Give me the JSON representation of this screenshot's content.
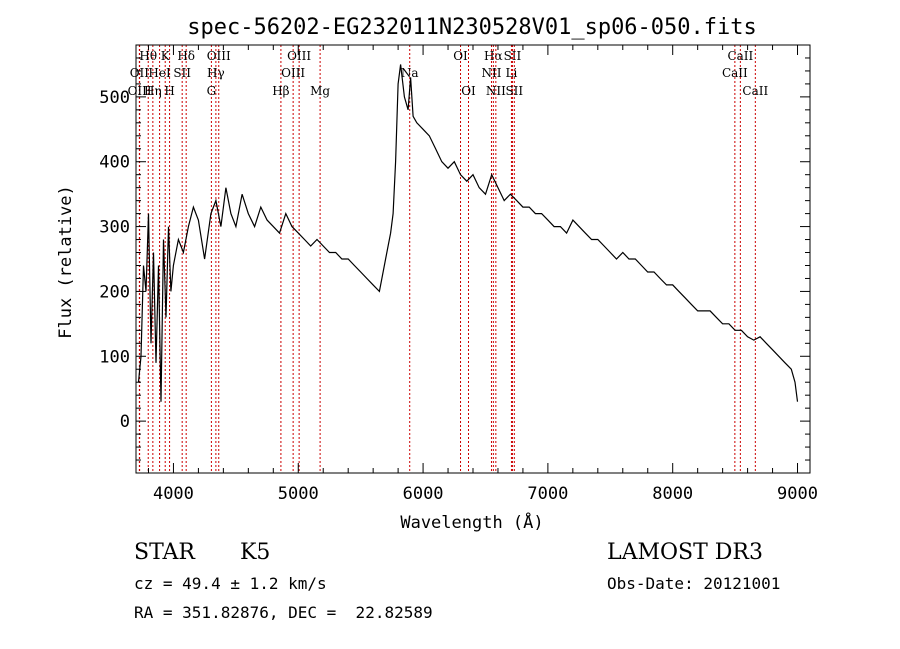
{
  "chart_data": {
    "type": "line",
    "title": "spec-56202-EG232011N230528V01_sp06-050.fits",
    "xlabel": "Wavelength (Å)",
    "ylabel": "Flux (relative)",
    "xlim": [
      3700,
      9100
    ],
    "ylim": [
      -80,
      580
    ],
    "x_ticks": [
      4000,
      5000,
      6000,
      7000,
      8000,
      9000
    ],
    "y_ticks": [
      0,
      100,
      200,
      300,
      400,
      500
    ],
    "grid": false,
    "line_color": "#000000",
    "marker_color": "#cc0000",
    "spectrum": {
      "x": [
        3720,
        3740,
        3760,
        3780,
        3800,
        3820,
        3840,
        3860,
        3880,
        3900,
        3920,
        3940,
        3960,
        3980,
        4000,
        4040,
        4080,
        4120,
        4160,
        4200,
        4250,
        4300,
        4340,
        4380,
        4420,
        4460,
        4500,
        4550,
        4600,
        4650,
        4700,
        4750,
        4800,
        4850,
        4900,
        4950,
        5000,
        5050,
        5100,
        5150,
        5200,
        5250,
        5300,
        5350,
        5400,
        5450,
        5500,
        5550,
        5600,
        5650,
        5700,
        5720,
        5740,
        5760,
        5780,
        5800,
        5820,
        5850,
        5880,
        5900,
        5920,
        5950,
        6000,
        6050,
        6100,
        6150,
        6200,
        6250,
        6300,
        6350,
        6400,
        6450,
        6500,
        6550,
        6600,
        6650,
        6700,
        6750,
        6800,
        6850,
        6900,
        6950,
        7000,
        7050,
        7100,
        7150,
        7200,
        7250,
        7300,
        7350,
        7400,
        7450,
        7500,
        7550,
        7600,
        7650,
        7700,
        7750,
        7800,
        7850,
        7900,
        7950,
        8000,
        8050,
        8100,
        8150,
        8200,
        8250,
        8300,
        8350,
        8400,
        8450,
        8500,
        8550,
        8600,
        8650,
        8700,
        8750,
        8800,
        8850,
        8900,
        8950,
        8980,
        9000
      ],
      "y": [
        60,
        100,
        240,
        200,
        320,
        120,
        260,
        90,
        240,
        30,
        280,
        160,
        300,
        200,
        240,
        280,
        260,
        300,
        330,
        310,
        250,
        320,
        340,
        300,
        360,
        320,
        300,
        350,
        320,
        300,
        330,
        310,
        300,
        290,
        320,
        300,
        290,
        280,
        270,
        280,
        270,
        260,
        260,
        250,
        250,
        240,
        230,
        220,
        210,
        200,
        250,
        270,
        290,
        320,
        400,
        520,
        550,
        500,
        480,
        530,
        470,
        460,
        450,
        440,
        420,
        400,
        390,
        400,
        380,
        370,
        380,
        360,
        350,
        380,
        360,
        340,
        350,
        340,
        330,
        330,
        320,
        320,
        310,
        300,
        300,
        290,
        310,
        300,
        290,
        280,
        280,
        270,
        260,
        250,
        260,
        250,
        250,
        240,
        230,
        230,
        220,
        210,
        210,
        200,
        190,
        180,
        170,
        170,
        170,
        160,
        150,
        150,
        140,
        140,
        130,
        125,
        130,
        120,
        110,
        100,
        90,
        80,
        60,
        30
      ]
    },
    "lines": [
      {
        "label": "Hθ",
        "wavelength": 3798,
        "tier": 0
      },
      {
        "label": "OII",
        "wavelength": 3727,
        "tier": 1
      },
      {
        "label": "OIII",
        "wavelength": 3729,
        "tier": 2
      },
      {
        "label": "K",
        "wavelength": 3934,
        "tier": 0
      },
      {
        "label": "HeI",
        "wavelength": 3889,
        "tier": 1
      },
      {
        "label": "Hη",
        "wavelength": 3835,
        "tier": 2
      },
      {
        "label": "SII",
        "wavelength": 4070,
        "tier": 1
      },
      {
        "label": "H",
        "wavelength": 3969,
        "tier": 2
      },
      {
        "label": "Hδ",
        "wavelength": 4102,
        "tier": 0
      },
      {
        "label": "OIII",
        "wavelength": 4363,
        "tier": 0
      },
      {
        "label": "Hγ",
        "wavelength": 4340,
        "tier": 1
      },
      {
        "label": "G",
        "wavelength": 4304,
        "tier": 2
      },
      {
        "label": "OIII",
        "wavelength": 5007,
        "tier": 0
      },
      {
        "label": "OIII",
        "wavelength": 4959,
        "tier": 1
      },
      {
        "label": "Hβ",
        "wavelength": 4861,
        "tier": 2
      },
      {
        "label": "Mg",
        "wavelength": 5175,
        "tier": 2
      },
      {
        "label": "Na",
        "wavelength": 5893,
        "tier": 1
      },
      {
        "label": "OI",
        "wavelength": 6300,
        "tier": 0
      },
      {
        "label": "OI",
        "wavelength": 6364,
        "tier": 2
      },
      {
        "label": "Hα",
        "wavelength": 6563,
        "tier": 0
      },
      {
        "label": "NII",
        "wavelength": 6548,
        "tier": 1
      },
      {
        "label": "NII",
        "wavelength": 6583,
        "tier": 2
      },
      {
        "label": "SII",
        "wavelength": 6716,
        "tier": 0
      },
      {
        "label": "Li",
        "wavelength": 6708,
        "tier": 1
      },
      {
        "label": "SII",
        "wavelength": 6731,
        "tier": 2
      },
      {
        "label": "CaII",
        "wavelength": 8542,
        "tier": 0
      },
      {
        "label": "CaII",
        "wavelength": 8498,
        "tier": 1
      },
      {
        "label": "CaII",
        "wavelength": 8662,
        "tier": 2
      }
    ]
  },
  "info": {
    "class": "STAR",
    "subclass": "K5",
    "survey": "LAMOST DR3",
    "cz": "cz = 49.4 ± 1.2 km/s",
    "obs_date": "Obs-Date: 20121001",
    "coords": "RA = 351.82876, DEC =  22.82589"
  }
}
